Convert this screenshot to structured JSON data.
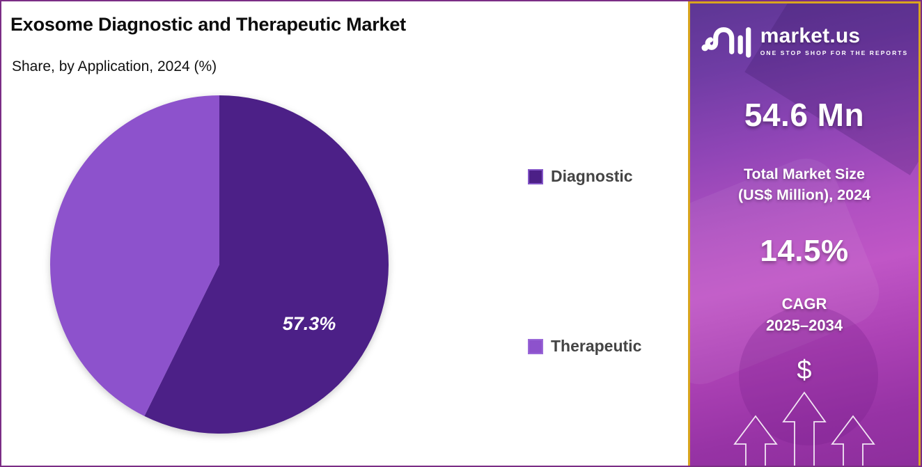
{
  "chart_data": {
    "type": "pie",
    "title": "Exosome Diagnostic and Therapeutic Market",
    "subtitle": "Share, by Application, 2024 (%)",
    "labels": [
      "Diagnostic",
      "Therapeutic"
    ],
    "values": [
      57.3,
      42.7
    ],
    "colors": [
      "#4c2087",
      "#8d52cc"
    ],
    "data_label": "57.3%",
    "start_angle": "top",
    "direction": "clockwise",
    "legend_position": "right"
  },
  "sidebar": {
    "brand_name": "market.us",
    "brand_tagline": "ONE STOP SHOP FOR THE REPORTS",
    "market_size_value": "54.6 Mn",
    "market_size_label_line1": "Total Market Size",
    "market_size_label_line2": "(US$ Million), 2024",
    "cagr_value": "14.5%",
    "cagr_label_line1": "CAGR",
    "cagr_label_line2": "2025–2034",
    "dollar_symbol": "$",
    "accent_border_color": "#d9a51e",
    "frame_border_color": "#7b2d85"
  }
}
